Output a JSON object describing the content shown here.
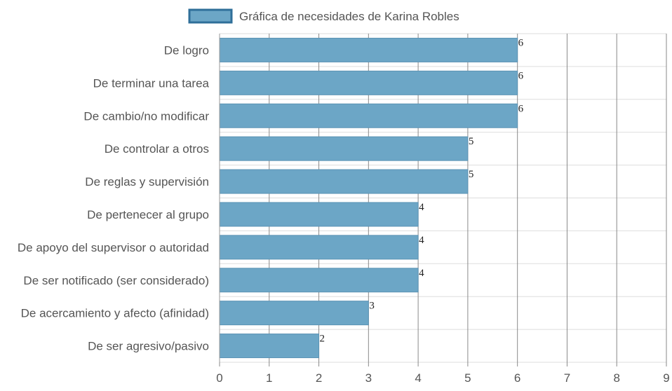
{
  "chart_data": {
    "type": "bar",
    "orientation": "horizontal",
    "legend_position": "top-center",
    "grid": true,
    "series": [
      {
        "name": "Gráfica de necesidades de Karina Robles",
        "values": [
          6,
          6,
          6,
          5,
          5,
          4,
          4,
          4,
          3,
          2
        ]
      }
    ],
    "categories": [
      "De logro",
      "De terminar una tarea",
      "De cambio/no modificar",
      "De controlar a otros",
      "De reglas y supervisión",
      "De pertenecer al grupo",
      "De apoyo del supervisor o autoridad",
      "De ser notificado (ser considerado)",
      "De acercamiento y afecto (afinidad)",
      "De ser agresivo/pasivo"
    ],
    "xlim": [
      0,
      9
    ],
    "x_ticks": [
      "0",
      "1",
      "2",
      "3",
      "4",
      "5",
      "6",
      "7",
      "8",
      "9"
    ],
    "colors": {
      "bar_fill": "#6ca6c6",
      "bar_stroke": "#5b93b4",
      "legend_fill": "#6ca6c6",
      "legend_stroke": "#2f6f99",
      "vertical_grid": "#8a8a8a",
      "horizontal_grid": "#dddddd",
      "axis": "#999999"
    }
  }
}
